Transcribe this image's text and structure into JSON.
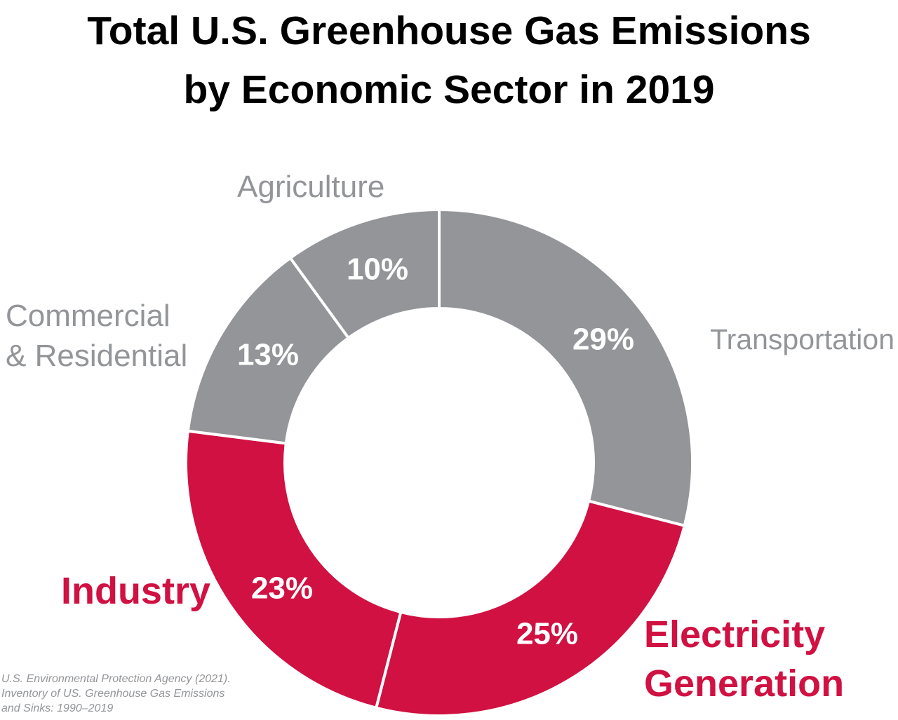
{
  "chart_data": {
    "type": "donut",
    "title": "Total U.S. Greenhouse Gas Emissions\nby Economic Sector in 2019",
    "categories": [
      "Transportation",
      "Electricity\nGeneration",
      "Industry",
      "Commercial\n& Residential",
      "Agriculture"
    ],
    "values": [
      29,
      25,
      23,
      13,
      10
    ],
    "value_labels": [
      "29%",
      "25%",
      "23%",
      "13%",
      "10%"
    ],
    "colors": [
      "#939598",
      "#d01142",
      "#d01142",
      "#939598",
      "#939598"
    ],
    "source": "U.S. Environmental Protection Agency (2021).\nInventory of US. Greenhouse Gas Emissions\nand Sinks: 1990–2019"
  }
}
